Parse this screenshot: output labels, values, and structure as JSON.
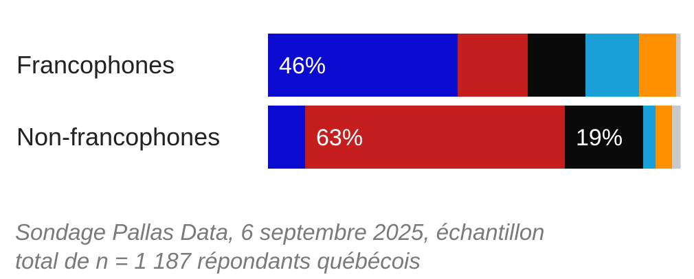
{
  "chart_data": {
    "type": "bar",
    "orientation": "horizontal",
    "stacked": true,
    "normalized": true,
    "categories": [
      "Francophones",
      "Non-francophones"
    ],
    "series": [
      {
        "color": "#0a0ad0",
        "values": [
          46,
          9
        ]
      },
      {
        "color": "#c41e1e",
        "values": [
          17,
          63
        ]
      },
      {
        "color": "#0a0a0a",
        "values": [
          14,
          19
        ]
      },
      {
        "color": "#1aa0d8",
        "values": [
          13,
          3
        ]
      },
      {
        "color": "#ff9000",
        "values": [
          9,
          4
        ]
      },
      {
        "color": "#c9c9c9",
        "values": [
          1,
          2
        ]
      }
    ],
    "data_labels": [
      {
        "category": 0,
        "series": 0,
        "text": "46%"
      },
      {
        "category": 1,
        "series": 1,
        "text": "63%"
      },
      {
        "category": 1,
        "series": 2,
        "text": "19%"
      }
    ],
    "grid": false,
    "legend": "none"
  },
  "caption": {
    "line1": "Sondage Pallas Data, 6 septembre 2025, échantillon",
    "line2": "total de n = 1 187 répondants québécois"
  }
}
